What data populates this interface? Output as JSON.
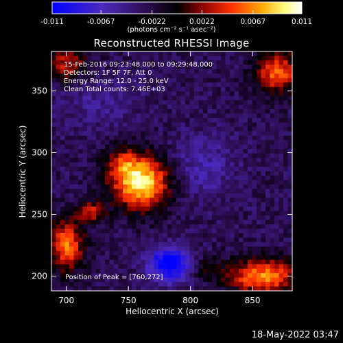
{
  "colorbar": {
    "ticks": [
      "-0.011",
      "-0.0067",
      "-0.0022",
      "0.0022",
      "0.0067",
      "0.011"
    ],
    "units_text": "(photons cm⁻² s⁻¹ asec⁻²)",
    "range": [
      -0.011,
      0.011
    ]
  },
  "footer": {
    "date": "18-May-2022 03:47"
  },
  "chart_data": {
    "type": "heatmap",
    "title": "Reconstructed RHESSI Image",
    "xlabel": "Heliocentric X (arcsec)",
    "ylabel": "Heliocentric Y (arcsec)",
    "xlim": [
      688,
      882
    ],
    "ylim": [
      188,
      382
    ],
    "x_ticks": [
      700,
      750,
      800,
      850
    ],
    "y_ticks": [
      200,
      250,
      300,
      350
    ],
    "colormap": [
      "#0000ff",
      "#4b2bbd",
      "#2a0c4e",
      "#000000",
      "#8b0000",
      "#ff3300",
      "#ffaa00",
      "#ffff80",
      "#ffffff"
    ],
    "annotations": [
      "15-Feb-2016 09:23:48.000 to 09:29:48.000",
      "Detectors: 1F 5F 7F, Att 0",
      "Energy Range: 12.0 - 25.0 keV",
      "Clean     Total counts: 7.46E+03"
    ],
    "peak_label": "Position of Peak = [760,272]",
    "peak": [
      760,
      272
    ],
    "sources": [
      {
        "x": 760,
        "y": 276,
        "sx": 16,
        "sy": 15,
        "amp": 0.0125
      },
      {
        "x": 745,
        "y": 292,
        "sx": 10,
        "sy": 9,
        "amp": 0.004
      },
      {
        "x": 720,
        "y": 252,
        "sx": 8,
        "sy": 6,
        "amp": 0.006
      },
      {
        "x": 700,
        "y": 225,
        "sx": 10,
        "sy": 14,
        "amp": 0.009
      },
      {
        "x": 700,
        "y": 372,
        "sx": 12,
        "sy": 10,
        "amp": 0.006
      },
      {
        "x": 870,
        "y": 365,
        "sx": 12,
        "sy": 12,
        "amp": 0.0085
      },
      {
        "x": 858,
        "y": 200,
        "sx": 20,
        "sy": 10,
        "amp": 0.0095
      },
      {
        "x": 812,
        "y": 207,
        "sx": 8,
        "sy": 6,
        "amp": 0.003
      },
      {
        "x": 783,
        "y": 210,
        "sx": 12,
        "sy": 10,
        "amp": -0.0095
      },
      {
        "x": 810,
        "y": 290,
        "sx": 18,
        "sy": 18,
        "amp": -0.003
      },
      {
        "x": 725,
        "y": 340,
        "sx": 25,
        "sy": 15,
        "amp": -0.002
      }
    ],
    "background": -0.0028
  }
}
